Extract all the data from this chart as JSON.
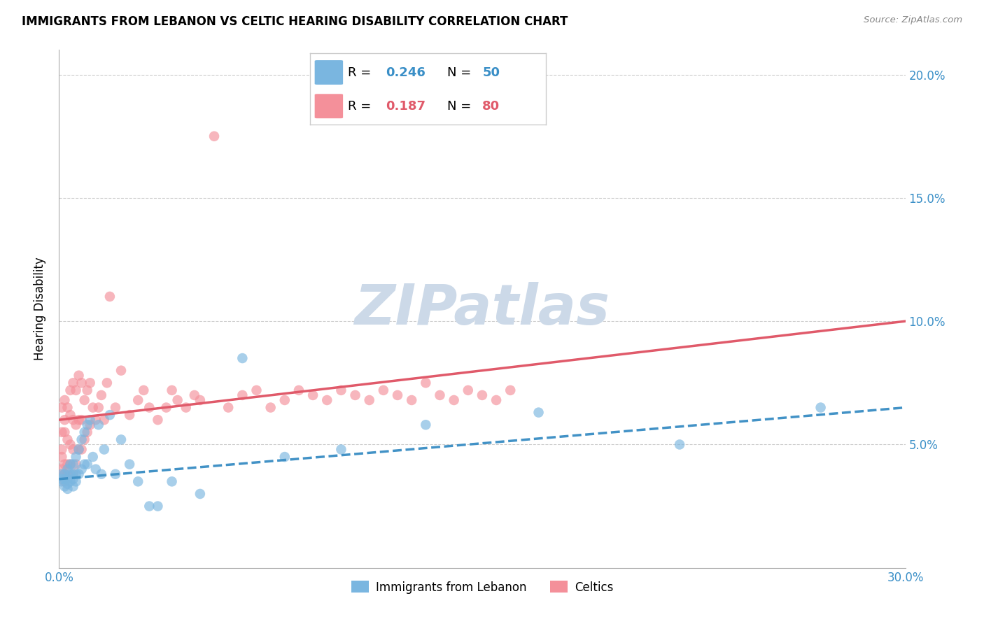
{
  "title": "IMMIGRANTS FROM LEBANON VS CELTIC HEARING DISABILITY CORRELATION CHART",
  "source": "Source: ZipAtlas.com",
  "ylabel": "Hearing Disability",
  "xlim": [
    0.0,
    0.3
  ],
  "ylim": [
    0.0,
    0.21
  ],
  "yticks": [
    0.05,
    0.1,
    0.15,
    0.2
  ],
  "ytick_labels": [
    "5.0%",
    "10.0%",
    "15.0%",
    "20.0%"
  ],
  "blue_color": "#7ab6e0",
  "pink_color": "#f4909a",
  "trend_blue_color": "#4292c6",
  "trend_pink_color": "#e05a6a",
  "watermark_color": "#ccd9e8",
  "blue_scatter_x": [
    0.001,
    0.001,
    0.001,
    0.002,
    0.002,
    0.002,
    0.003,
    0.003,
    0.003,
    0.003,
    0.004,
    0.004,
    0.004,
    0.005,
    0.005,
    0.005,
    0.005,
    0.006,
    0.006,
    0.006,
    0.007,
    0.007,
    0.008,
    0.008,
    0.009,
    0.009,
    0.01,
    0.01,
    0.011,
    0.012,
    0.013,
    0.014,
    0.015,
    0.016,
    0.018,
    0.02,
    0.022,
    0.025,
    0.028,
    0.032,
    0.035,
    0.04,
    0.05,
    0.065,
    0.08,
    0.1,
    0.13,
    0.17,
    0.22,
    0.27
  ],
  "blue_scatter_y": [
    0.035,
    0.038,
    0.036,
    0.033,
    0.036,
    0.038,
    0.032,
    0.034,
    0.036,
    0.04,
    0.035,
    0.038,
    0.042,
    0.033,
    0.036,
    0.038,
    0.042,
    0.035,
    0.038,
    0.045,
    0.038,
    0.048,
    0.04,
    0.052,
    0.042,
    0.055,
    0.042,
    0.058,
    0.06,
    0.045,
    0.04,
    0.058,
    0.038,
    0.048,
    0.062,
    0.038,
    0.052,
    0.042,
    0.035,
    0.025,
    0.025,
    0.035,
    0.03,
    0.085,
    0.045,
    0.048,
    0.058,
    0.063,
    0.05,
    0.065
  ],
  "pink_scatter_x": [
    0.001,
    0.001,
    0.001,
    0.001,
    0.001,
    0.002,
    0.002,
    0.002,
    0.002,
    0.002,
    0.002,
    0.003,
    0.003,
    0.003,
    0.003,
    0.004,
    0.004,
    0.004,
    0.004,
    0.005,
    0.005,
    0.005,
    0.005,
    0.006,
    0.006,
    0.006,
    0.007,
    0.007,
    0.007,
    0.008,
    0.008,
    0.008,
    0.009,
    0.009,
    0.01,
    0.01,
    0.011,
    0.011,
    0.012,
    0.013,
    0.014,
    0.015,
    0.016,
    0.017,
    0.018,
    0.02,
    0.022,
    0.025,
    0.028,
    0.03,
    0.032,
    0.035,
    0.038,
    0.04,
    0.042,
    0.045,
    0.048,
    0.05,
    0.055,
    0.06,
    0.065,
    0.07,
    0.075,
    0.08,
    0.085,
    0.09,
    0.095,
    0.1,
    0.105,
    0.11,
    0.115,
    0.12,
    0.125,
    0.13,
    0.135,
    0.14,
    0.145,
    0.15,
    0.155,
    0.16
  ],
  "pink_scatter_y": [
    0.04,
    0.045,
    0.048,
    0.055,
    0.065,
    0.035,
    0.038,
    0.042,
    0.055,
    0.06,
    0.068,
    0.038,
    0.042,
    0.052,
    0.065,
    0.042,
    0.05,
    0.062,
    0.072,
    0.038,
    0.048,
    0.06,
    0.075,
    0.042,
    0.058,
    0.072,
    0.048,
    0.06,
    0.078,
    0.048,
    0.06,
    0.075,
    0.052,
    0.068,
    0.055,
    0.072,
    0.058,
    0.075,
    0.065,
    0.06,
    0.065,
    0.07,
    0.06,
    0.075,
    0.11,
    0.065,
    0.08,
    0.062,
    0.068,
    0.072,
    0.065,
    0.06,
    0.065,
    0.072,
    0.068,
    0.065,
    0.07,
    0.068,
    0.175,
    0.065,
    0.07,
    0.072,
    0.065,
    0.068,
    0.072,
    0.07,
    0.068,
    0.072,
    0.07,
    0.068,
    0.072,
    0.07,
    0.068,
    0.075,
    0.07,
    0.068,
    0.072,
    0.07,
    0.068,
    0.072
  ],
  "blue_trend_x0": 0.0,
  "blue_trend_y0": 0.036,
  "blue_trend_x1": 0.3,
  "blue_trend_y1": 0.065,
  "pink_trend_x0": 0.0,
  "pink_trend_y0": 0.06,
  "pink_trend_x1": 0.3,
  "pink_trend_y1": 0.1
}
